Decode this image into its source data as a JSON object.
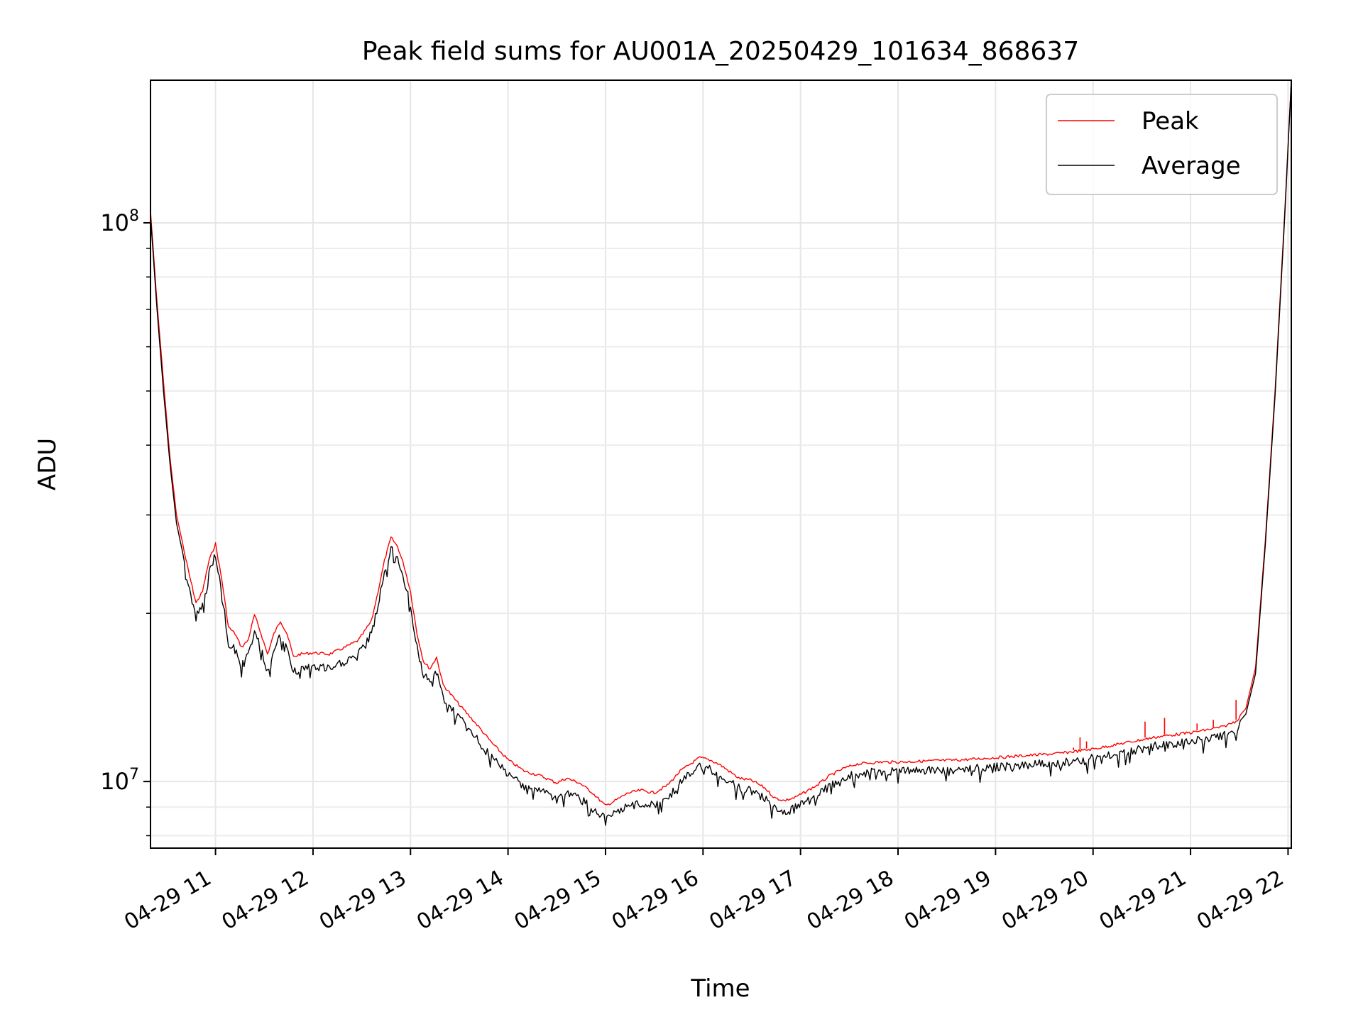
{
  "chart_data": {
    "type": "line",
    "title": "Peak field sums for AU001A_20250429_101634_868637",
    "xlabel": "Time",
    "ylabel": "ADU",
    "xlim": [
      "2025-04-29 10:20",
      "2025-04-29 22:02"
    ],
    "ylim": [
      7600000,
      180000000
    ],
    "yscale": "log",
    "grid": true,
    "legend_position": "top-right",
    "x_ticks": [
      {
        "time": "2025-04-29 11:00",
        "label": "04-29 11"
      },
      {
        "time": "2025-04-29 12:00",
        "label": "04-29 12"
      },
      {
        "time": "2025-04-29 13:00",
        "label": "04-29 13"
      },
      {
        "time": "2025-04-29 14:00",
        "label": "04-29 14"
      },
      {
        "time": "2025-04-29 15:00",
        "label": "04-29 15"
      },
      {
        "time": "2025-04-29 16:00",
        "label": "04-29 16"
      },
      {
        "time": "2025-04-29 17:00",
        "label": "04-29 17"
      },
      {
        "time": "2025-04-29 18:00",
        "label": "04-29 18"
      },
      {
        "time": "2025-04-29 19:00",
        "label": "04-29 19"
      },
      {
        "time": "2025-04-29 20:00",
        "label": "04-29 20"
      },
      {
        "time": "2025-04-29 21:00",
        "label": "04-29 21"
      },
      {
        "time": "2025-04-29 22:00",
        "label": "04-29 22"
      }
    ],
    "y_ticks": [
      {
        "value": 10000000,
        "base": "10",
        "exp": "7"
      },
      {
        "value": 100000000,
        "base": "10",
        "exp": "8"
      }
    ],
    "series": [
      {
        "name": "Peak",
        "color": "#ff0000",
        "x": [
          "2025-04-29 10:20",
          "2025-04-29 10:24",
          "2025-04-29 10:28",
          "2025-04-29 10:32",
          "2025-04-29 10:36",
          "2025-04-29 10:40",
          "2025-04-29 10:44",
          "2025-04-29 10:48",
          "2025-04-29 10:52",
          "2025-04-29 10:56",
          "2025-04-29 11:00",
          "2025-04-29 11:04",
          "2025-04-29 11:08",
          "2025-04-29 11:12",
          "2025-04-29 11:16",
          "2025-04-29 11:20",
          "2025-04-29 11:24",
          "2025-04-29 11:28",
          "2025-04-29 11:32",
          "2025-04-29 11:36",
          "2025-04-29 11:40",
          "2025-04-29 11:44",
          "2025-04-29 11:48",
          "2025-04-29 11:52",
          "2025-04-29 12:00",
          "2025-04-29 12:10",
          "2025-04-29 12:20",
          "2025-04-29 12:28",
          "2025-04-29 12:36",
          "2025-04-29 12:40",
          "2025-04-29 12:44",
          "2025-04-29 12:48",
          "2025-04-29 12:52",
          "2025-04-29 12:56",
          "2025-04-29 13:00",
          "2025-04-29 13:04",
          "2025-04-29 13:08",
          "2025-04-29 13:12",
          "2025-04-29 13:16",
          "2025-04-29 13:20",
          "2025-04-29 13:30",
          "2025-04-29 13:40",
          "2025-04-29 13:50",
          "2025-04-29 14:00",
          "2025-04-29 14:10",
          "2025-04-29 14:20",
          "2025-04-29 14:30",
          "2025-04-29 14:36",
          "2025-04-29 14:44",
          "2025-04-29 14:52",
          "2025-04-29 15:00",
          "2025-04-29 15:06",
          "2025-04-29 15:14",
          "2025-04-29 15:22",
          "2025-04-29 15:30",
          "2025-04-29 15:38",
          "2025-04-29 15:46",
          "2025-04-29 15:52",
          "2025-04-29 15:58",
          "2025-04-29 16:04",
          "2025-04-29 16:10",
          "2025-04-29 16:16",
          "2025-04-29 16:22",
          "2025-04-29 16:30",
          "2025-04-29 16:38",
          "2025-04-29 16:44",
          "2025-04-29 16:50",
          "2025-04-29 16:56",
          "2025-04-29 17:02",
          "2025-04-29 17:10",
          "2025-04-29 17:18",
          "2025-04-29 17:26",
          "2025-04-29 17:34",
          "2025-04-29 17:40",
          "2025-04-29 17:50",
          "2025-04-29 18:00",
          "2025-04-29 18:20",
          "2025-04-29 18:40",
          "2025-04-29 19:00",
          "2025-04-29 19:20",
          "2025-04-29 19:40",
          "2025-04-29 20:00",
          "2025-04-29 20:20",
          "2025-04-29 20:40",
          "2025-04-29 21:00",
          "2025-04-29 21:20",
          "2025-04-29 21:28",
          "2025-04-29 21:34",
          "2025-04-29 21:40",
          "2025-04-29 21:46",
          "2025-04-29 21:52",
          "2025-04-29 21:58",
          "2025-04-29 22:02"
        ],
        "values": [
          105000000,
          72000000,
          52000000,
          38000000,
          30000000,
          26500000,
          23500000,
          21000000,
          22000000,
          25000000,
          26800000,
          23000000,
          19000000,
          18500000,
          17500000,
          18000000,
          20000000,
          18500000,
          17000000,
          18500000,
          19500000,
          18500000,
          16800000,
          17000000,
          17100000,
          17000000,
          17500000,
          18000000,
          19500000,
          22000000,
          25000000,
          27500000,
          26500000,
          24500000,
          22000000,
          18500000,
          16500000,
          16000000,
          16800000,
          15000000,
          13800000,
          12800000,
          11800000,
          11000000,
          10500000,
          10300000,
          10000000,
          10200000,
          10000000,
          9600000,
          9100000,
          9300000,
          9600000,
          9700000,
          9600000,
          9900000,
          10500000,
          10800000,
          11100000,
          11000000,
          10800000,
          10500000,
          10200000,
          10100000,
          9800000,
          9400000,
          9300000,
          9400000,
          9600000,
          9900000,
          10300000,
          10600000,
          10800000,
          10850000,
          10900000,
          10900000,
          10950000,
          11000000,
          11100000,
          11200000,
          11300000,
          11500000,
          11800000,
          12100000,
          12300000,
          12600000,
          12900000,
          13500000,
          16000000,
          27000000,
          50000000,
          105000000,
          180000000
        ],
        "spikes": [
          {
            "x": "2025-04-29 19:48",
            "value": 11500000
          },
          {
            "x": "2025-04-29 19:52",
            "value": 12000000
          },
          {
            "x": "2025-04-29 19:56",
            "value": 11800000
          },
          {
            "x": "2025-04-29 20:32",
            "value": 12800000
          },
          {
            "x": "2025-04-29 20:44",
            "value": 13000000
          },
          {
            "x": "2025-04-29 21:04",
            "value": 12700000
          },
          {
            "x": "2025-04-29 21:14",
            "value": 12900000
          },
          {
            "x": "2025-04-29 21:28",
            "value": 14000000
          }
        ]
      },
      {
        "name": "Average",
        "color": "#000000",
        "x": [
          "2025-04-29 10:20",
          "2025-04-29 10:24",
          "2025-04-29 10:28",
          "2025-04-29 10:32",
          "2025-04-29 10:36",
          "2025-04-29 10:40",
          "2025-04-29 10:44",
          "2025-04-29 10:48",
          "2025-04-29 10:52",
          "2025-04-29 10:56",
          "2025-04-29 11:00",
          "2025-04-29 11:04",
          "2025-04-29 11:08",
          "2025-04-29 11:12",
          "2025-04-29 11:16",
          "2025-04-29 11:20",
          "2025-04-29 11:24",
          "2025-04-29 11:28",
          "2025-04-29 11:32",
          "2025-04-29 11:36",
          "2025-04-29 11:40",
          "2025-04-29 11:44",
          "2025-04-29 11:48",
          "2025-04-29 11:52",
          "2025-04-29 12:00",
          "2025-04-29 12:10",
          "2025-04-29 12:20",
          "2025-04-29 12:28",
          "2025-04-29 12:36",
          "2025-04-29 12:40",
          "2025-04-29 12:44",
          "2025-04-29 12:48",
          "2025-04-29 12:52",
          "2025-04-29 12:56",
          "2025-04-29 13:00",
          "2025-04-29 13:04",
          "2025-04-29 13:08",
          "2025-04-29 13:12",
          "2025-04-29 13:16",
          "2025-04-29 13:20",
          "2025-04-29 13:30",
          "2025-04-29 13:40",
          "2025-04-29 13:50",
          "2025-04-29 14:00",
          "2025-04-29 14:10",
          "2025-04-29 14:20",
          "2025-04-29 14:30",
          "2025-04-29 14:36",
          "2025-04-29 14:44",
          "2025-04-29 14:52",
          "2025-04-29 15:00",
          "2025-04-29 15:06",
          "2025-04-29 15:14",
          "2025-04-29 15:22",
          "2025-04-29 15:30",
          "2025-04-29 15:38",
          "2025-04-29 15:46",
          "2025-04-29 15:52",
          "2025-04-29 15:58",
          "2025-04-29 16:04",
          "2025-04-29 16:10",
          "2025-04-29 16:16",
          "2025-04-29 16:22",
          "2025-04-29 16:30",
          "2025-04-29 16:38",
          "2025-04-29 16:44",
          "2025-04-29 16:50",
          "2025-04-29 16:56",
          "2025-04-29 17:02",
          "2025-04-29 17:10",
          "2025-04-29 17:18",
          "2025-04-29 17:26",
          "2025-04-29 17:34",
          "2025-04-29 17:40",
          "2025-04-29 17:50",
          "2025-04-29 18:00",
          "2025-04-29 18:20",
          "2025-04-29 18:40",
          "2025-04-29 19:00",
          "2025-04-29 19:20",
          "2025-04-29 19:40",
          "2025-04-29 20:00",
          "2025-04-29 20:20",
          "2025-04-29 20:40",
          "2025-04-29 21:00",
          "2025-04-29 21:20",
          "2025-04-29 21:28",
          "2025-04-29 21:34",
          "2025-04-29 21:40",
          "2025-04-29 21:46",
          "2025-04-29 21:52",
          "2025-04-29 21:58",
          "2025-04-29 22:02"
        ],
        "values": [
          103000000,
          70000000,
          50000000,
          37000000,
          29000000,
          25500000,
          22500000,
          20000000,
          21000000,
          24000000,
          26000000,
          22000000,
          18000000,
          17500000,
          16500000,
          17000000,
          19000000,
          17500000,
          16000000,
          17500000,
          18500000,
          17500000,
          16000000,
          16200000,
          16300000,
          16200000,
          16700000,
          17200000,
          18700000,
          21000000,
          24000000,
          26500000,
          25500000,
          23500000,
          21000000,
          17700000,
          15800000,
          15300000,
          16000000,
          14400000,
          13200000,
          12200000,
          11200000,
          10500000,
          10000000,
          9800000,
          9500000,
          9700000,
          9500000,
          9100000,
          8700000,
          8900000,
          9200000,
          9300000,
          9200000,
          9500000,
          10100000,
          10500000,
          10800000,
          10700000,
          10500000,
          10200000,
          9900000,
          9800000,
          9500000,
          9100000,
          9000000,
          9100000,
          9300000,
          9600000,
          10000000,
          10300000,
          10500000,
          10550000,
          10600000,
          10600000,
          10650000,
          10700000,
          10800000,
          10900000,
          11000000,
          11200000,
          11500000,
          11800000,
          12000000,
          12300000,
          12600000,
          13200000,
          15600000,
          26500000,
          49000000,
          103000000,
          180000000
        ]
      }
    ]
  }
}
